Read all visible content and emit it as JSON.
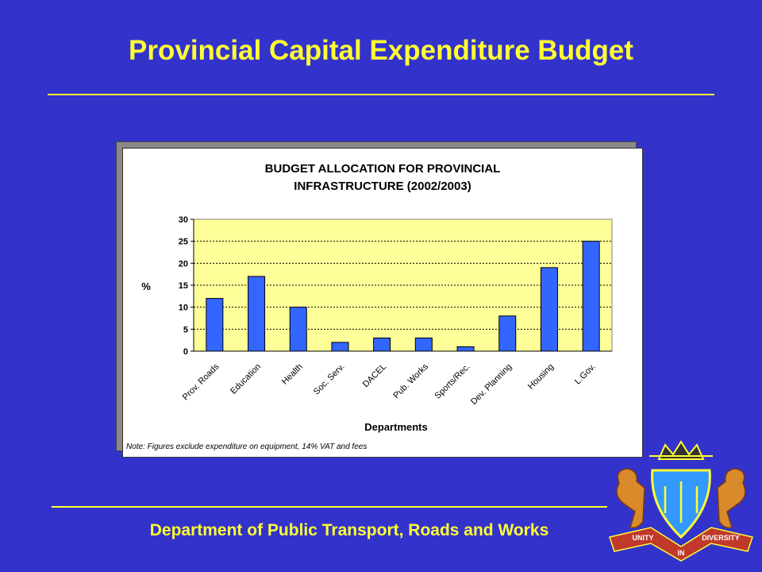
{
  "slide": {
    "title": "Provincial Capital Expenditure Budget",
    "footer": "Department of Public Transport, Roads and Works"
  },
  "crest": {
    "motto_left": "UNITY",
    "motto_center": "IN",
    "motto_right": "DIVERSITY"
  },
  "colors": {
    "background": "#3333cc",
    "title_text": "#ffff33",
    "plot_area": "#ffff99",
    "bar_fill": "#3366ff"
  },
  "chart_data": {
    "type": "bar",
    "title_line1": "BUDGET ALLOCATION FOR PROVINCIAL",
    "title_line2": "INFRASTRUCTURE (2002/2003)",
    "xlabel": "Departments",
    "ylabel": "%",
    "ylim": [
      0,
      30
    ],
    "yticks": [
      0,
      5,
      10,
      15,
      20,
      25,
      30
    ],
    "grid": true,
    "categories": [
      "Prov. Roads",
      "Education",
      "Health",
      "Soc. Serv.",
      "DACEL",
      "Pub. Works",
      "Sports/Rec.",
      "Dev. Planning",
      "Housing",
      "L.Gov."
    ],
    "values": [
      12,
      17,
      10,
      2,
      3,
      3,
      1,
      8,
      19,
      25
    ],
    "note": "Note: Figures exclude expenditure on equipment, 14% VAT and  fees"
  }
}
